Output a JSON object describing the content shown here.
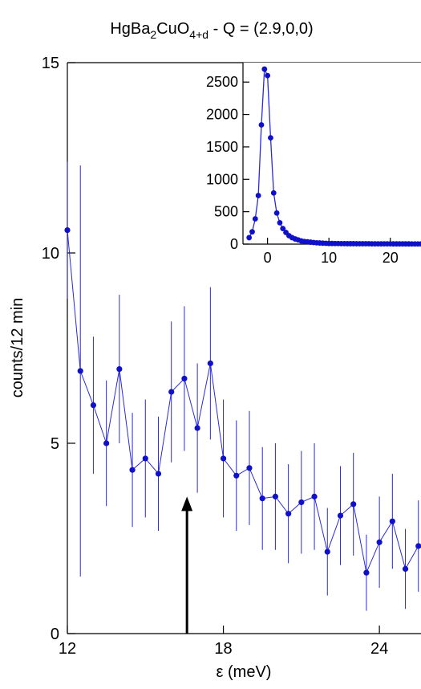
{
  "chart_data": [
    {
      "type": "scatter",
      "title": "HgBa2CuO4+d - Q = (2.9,0,0)",
      "title_parts": {
        "pre": "HgBa",
        "sub1": "2",
        "mid": "CuO",
        "sub2": "4+d",
        "post": " - Q = (2.9,0,0)"
      },
      "xlabel": "ε (meV)",
      "ylabel": "counts/12 min",
      "xlim": [
        12,
        25.6
      ],
      "ylim": [
        0,
        15
      ],
      "xticks": [
        12,
        18,
        24
      ],
      "yticks": [
        0,
        5,
        10,
        15
      ],
      "grid": false,
      "marker_color": "#1010c8",
      "line_color": "#2a2ad8",
      "arrow_x": 16.6,
      "arrow_y_top": 3.6,
      "arrow_color": "#000000",
      "series": [
        {
          "x": [
            12.0,
            12.5,
            13.0,
            13.5,
            14.0,
            14.5,
            15.0,
            15.5,
            16.0,
            16.5,
            17.0,
            17.5,
            18.0,
            18.5,
            19.0,
            19.5,
            20.0,
            20.5,
            21.0,
            21.5,
            22.0,
            22.5,
            23.0,
            23.5,
            24.0,
            24.5,
            25.0,
            25.5
          ],
          "y": [
            10.6,
            6.9,
            6.0,
            5.0,
            6.95,
            4.3,
            4.6,
            4.2,
            6.35,
            6.7,
            5.4,
            7.1,
            4.6,
            4.15,
            4.35,
            3.55,
            3.6,
            3.15,
            3.45,
            3.6,
            2.15,
            3.1,
            3.4,
            1.6,
            2.4,
            2.95,
            1.7,
            2.3
          ],
          "err": [
            1.8,
            5.4,
            1.8,
            1.65,
            1.95,
            1.5,
            1.55,
            1.5,
            1.85,
            1.9,
            1.7,
            2.0,
            1.55,
            1.45,
            1.5,
            1.35,
            1.4,
            1.3,
            1.35,
            1.4,
            1.15,
            1.3,
            1.35,
            1.0,
            1.2,
            1.25,
            1.05,
            1.2
          ]
        }
      ]
    },
    {
      "type": "scatter",
      "title": "",
      "xlim": [
        -4,
        25
      ],
      "ylim": [
        0,
        2800
      ],
      "xticks": [
        0,
        10,
        20
      ],
      "yticks": [
        0,
        500,
        1000,
        1500,
        2000,
        2500
      ],
      "grid": false,
      "marker_color": "#1010c8",
      "line_color": "#2a2ad8",
      "series": [
        {
          "x": [
            -3.0,
            -2.5,
            -2.0,
            -1.5,
            -1.0,
            -0.5,
            0.0,
            0.5,
            1.0,
            1.5,
            2.0,
            2.5,
            3.0,
            3.5,
            4.0,
            4.5,
            5.0,
            5.5,
            6.0,
            6.5,
            7.0,
            7.5,
            8.0,
            8.5,
            9.0,
            9.5,
            10.0,
            10.5,
            11.0,
            11.5,
            12.0,
            12.5,
            13.0,
            13.5,
            14.0,
            14.5,
            15.0,
            15.5,
            16.0,
            16.5,
            17.0,
            17.5,
            18.0,
            18.5,
            19.0,
            19.5,
            20.0,
            20.5,
            21.0,
            21.5,
            22.0,
            22.5,
            23.0,
            23.5,
            24.0,
            24.5,
            25.0
          ],
          "y": [
            100,
            190,
            390,
            750,
            1840,
            2700,
            2600,
            1640,
            790,
            480,
            330,
            240,
            180,
            130,
            100,
            80,
            65,
            50,
            40,
            35,
            30,
            25,
            20,
            18,
            15,
            12,
            10,
            10,
            9,
            9,
            8,
            8,
            7,
            7,
            7,
            6,
            6,
            6,
            6,
            6,
            5,
            5,
            5,
            5,
            5,
            5,
            5,
            4,
            4,
            4,
            4,
            4,
            4,
            3,
            3,
            3,
            3
          ]
        }
      ]
    }
  ]
}
